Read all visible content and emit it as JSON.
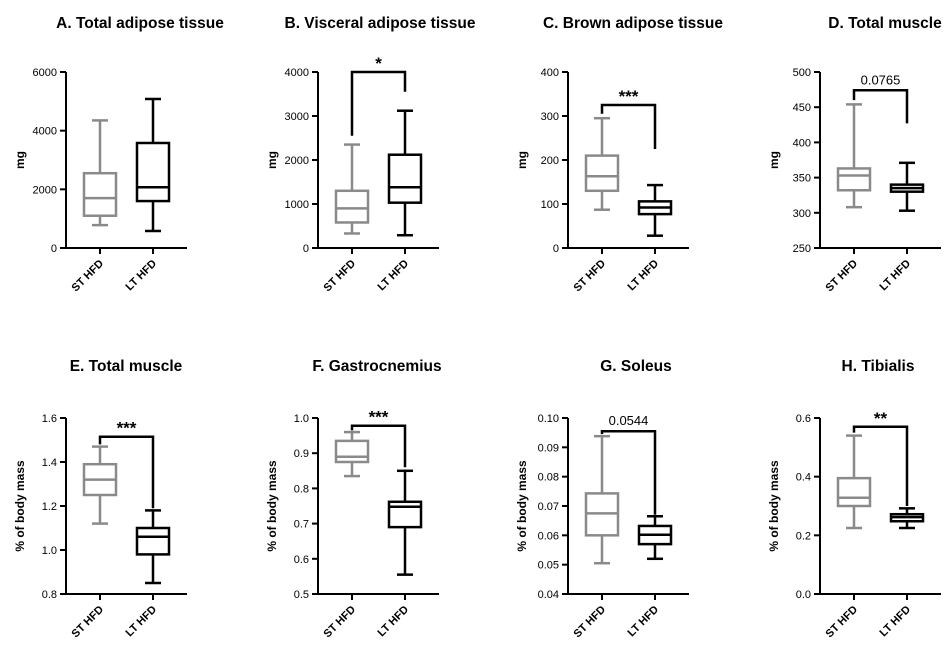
{
  "colors": {
    "st": "#8a8a8a",
    "lt": "#000000",
    "axis": "#000000"
  },
  "chart_data": [
    {
      "type": "box",
      "title": "A. Total adipose tissue",
      "ylabel": "mg",
      "categories": [
        "ST HFD",
        "LT HFD"
      ],
      "ylim": [
        0,
        6000
      ],
      "yticks": [
        "0",
        "2000",
        "4000",
        "6000"
      ],
      "boxes": [
        {
          "min": 780,
          "q1": 1100,
          "median": 1700,
          "q3": 2550,
          "max": 4350
        },
        {
          "min": 580,
          "q1": 1600,
          "median": 2070,
          "q3": 3580,
          "max": 5080
        }
      ],
      "significance": null
    },
    {
      "type": "box",
      "title": "B. Visceral adipose tissue",
      "ylabel": "mg",
      "categories": [
        "ST HFD",
        "LT HFD"
      ],
      "ylim": [
        0,
        4000
      ],
      "yticks": [
        "0",
        "1000",
        "2000",
        "3000",
        "4000"
      ],
      "boxes": [
        {
          "min": 330,
          "q1": 580,
          "median": 900,
          "q3": 1300,
          "max": 2350
        },
        {
          "min": 290,
          "q1": 1030,
          "median": 1380,
          "q3": 2120,
          "max": 3120
        }
      ],
      "significance": {
        "label": "*",
        "y": 4000,
        "left_end": 2550,
        "right_end": 3550
      }
    },
    {
      "type": "box",
      "title": "C. Brown adipose tissue",
      "ylabel": "mg",
      "categories": [
        "ST HFD",
        "LT HFD"
      ],
      "ylim": [
        0,
        400
      ],
      "yticks": [
        "0",
        "100",
        "200",
        "300",
        "400"
      ],
      "boxes": [
        {
          "min": 87,
          "q1": 130,
          "median": 163,
          "q3": 210,
          "max": 295
        },
        {
          "min": 28,
          "q1": 77,
          "median": 92,
          "q3": 106,
          "max": 143
        }
      ],
      "significance": {
        "label": "***",
        "y": 325,
        "left_end": 305,
        "right_end": 225
      }
    },
    {
      "type": "box",
      "title": "D. Total muscle",
      "ylabel": "mg",
      "categories": [
        "ST HFD",
        "LT HFD"
      ],
      "ylim": [
        250,
        500
      ],
      "yticks": [
        "250",
        "300",
        "350",
        "400",
        "450",
        "500"
      ],
      "boxes": [
        {
          "min": 308,
          "q1": 332,
          "median": 353,
          "q3": 363,
          "max": 454
        },
        {
          "min": 303,
          "q1": 330,
          "median": 335,
          "q3": 340,
          "max": 371
        }
      ],
      "significance": {
        "label": "0.0765",
        "y": 474,
        "left_end": 460,
        "right_end": 427
      }
    },
    {
      "type": "box",
      "title": "E. Total muscle",
      "ylabel": "% of body mass",
      "categories": [
        "ST HFD",
        "LT HFD"
      ],
      "ylim": [
        0.8,
        1.6
      ],
      "yticks": [
        "0.8",
        "1.0",
        "1.2",
        "1.4",
        "1.6"
      ],
      "boxes": [
        {
          "min": 1.12,
          "q1": 1.25,
          "median": 1.32,
          "q3": 1.39,
          "max": 1.47
        },
        {
          "min": 0.85,
          "q1": 0.98,
          "median": 1.06,
          "q3": 1.1,
          "max": 1.18
        }
      ],
      "significance": {
        "label": "***",
        "y": 1.515,
        "left_end": 1.48,
        "right_end": 1.19
      }
    },
    {
      "type": "box",
      "title": "F. Gastrocnemius",
      "ylabel": "% of body mass",
      "categories": [
        "ST HFD",
        "LT HFD"
      ],
      "ylim": [
        0.5,
        1.0
      ],
      "yticks": [
        "0.5",
        "0.6",
        "0.7",
        "0.8",
        "0.9",
        "1.0"
      ],
      "boxes": [
        {
          "min": 0.835,
          "q1": 0.875,
          "median": 0.89,
          "q3": 0.935,
          "max": 0.96
        },
        {
          "min": 0.555,
          "q1": 0.69,
          "median": 0.748,
          "q3": 0.762,
          "max": 0.85
        }
      ],
      "significance": {
        "label": "***",
        "y": 0.978,
        "left_end": 0.965,
        "right_end": 0.86
      }
    },
    {
      "type": "box",
      "title": "G. Soleus",
      "ylabel": "% of body mass",
      "categories": [
        "ST HFD",
        "LT HFD"
      ],
      "ylim": [
        0.04,
        0.1
      ],
      "yticks": [
        "0.04",
        "0.05",
        "0.06",
        "0.07",
        "0.08",
        "0.09",
        "0.10"
      ],
      "boxes": [
        {
          "min": 0.0505,
          "q1": 0.06,
          "median": 0.0675,
          "q3": 0.0743,
          "max": 0.0938
        },
        {
          "min": 0.052,
          "q1": 0.057,
          "median": 0.0602,
          "q3": 0.0632,
          "max": 0.0665
        }
      ],
      "significance": {
        "label": "0.0544",
        "y": 0.0955,
        "left_end": 0.0945,
        "right_end": 0.067
      }
    },
    {
      "type": "box",
      "title": "H. Tibialis",
      "ylabel": "% of body mass",
      "categories": [
        "ST HFD",
        "LT HFD"
      ],
      "ylim": [
        0.0,
        0.6
      ],
      "yticks": [
        "0.0",
        "0.2",
        "0.4",
        "0.6"
      ],
      "boxes": [
        {
          "min": 0.225,
          "q1": 0.3,
          "median": 0.328,
          "q3": 0.395,
          "max": 0.54
        },
        {
          "min": 0.225,
          "q1": 0.248,
          "median": 0.262,
          "q3": 0.272,
          "max": 0.292
        }
      ],
      "significance": {
        "label": "**",
        "y": 0.57,
        "left_end": 0.55,
        "right_end": 0.3
      }
    }
  ]
}
